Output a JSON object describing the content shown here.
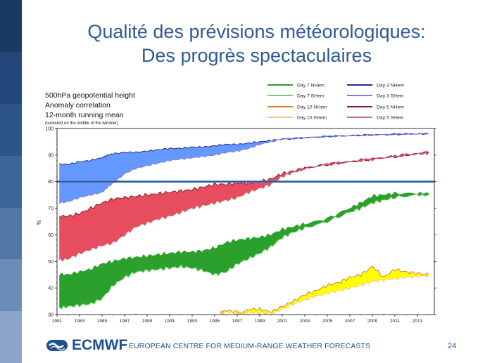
{
  "slide": {
    "title_line1": "Qualité des prévisions météorologiques:",
    "title_line2": "Des progrès spectaculaires",
    "page_number": "24",
    "logo_text": "ECMWF",
    "logo_subtitle": "EUROPEAN CENTRE FOR MEDIUM-RANGE WEATHER FORECASTS",
    "sidebar_colors": [
      "#1b3a63",
      "#23477a",
      "#2e5589",
      "#3d6598",
      "#5277a7",
      "#6b8cb7",
      "#8aa5c8"
    ]
  },
  "chart_data": {
    "type": "area",
    "annotation_lines": [
      "500hPa geopotential height",
      "Anomaly correlation",
      "12-month running mean",
      "(centered on the middle of the window)"
    ],
    "ylabel": "%",
    "xlim": [
      1981,
      2014.5
    ],
    "ylim": [
      30,
      100
    ],
    "x_ticks": [
      1981,
      1983,
      1985,
      1987,
      1989,
      1991,
      1993,
      1995,
      1997,
      1999,
      2001,
      2003,
      2005,
      2007,
      2009,
      2011,
      2013
    ],
    "y_ticks": [
      30,
      40,
      50,
      60,
      70,
      80,
      90,
      100
    ],
    "reference_line": 80,
    "grid": false,
    "legend_position": "top-right",
    "legend": [
      {
        "name": "Day 7 NHem",
        "color": "#2e9e2e"
      },
      {
        "name": "Day 3 NHem",
        "color": "#1a2e9a"
      },
      {
        "name": "Day 7 SHem",
        "color": "#6fce6f"
      },
      {
        "name": "Day 3 SHem",
        "color": "#7f7fd8"
      },
      {
        "name": "Day 10 NHem",
        "color": "#d98020"
      },
      {
        "name": "Day 5 NHem",
        "color": "#8b1a2a"
      },
      {
        "name": "Day 10 SHem",
        "color": "#f2c98a"
      },
      {
        "name": "Day 5 SHem",
        "color": "#c8707a"
      }
    ],
    "bands": [
      {
        "name": "Day 3",
        "fill": "#6699ff",
        "nh_color": "#1a2e9a",
        "sh_color": "#7f7fd8",
        "x": [
          1981.2,
          1982,
          1983,
          1984,
          1985,
          1985.5,
          1986,
          1987,
          1988,
          1989,
          1990,
          1991,
          1992,
          1993,
          1994,
          1995,
          1996,
          1997,
          1998,
          1999,
          2000,
          2001,
          2003,
          2005,
          2007,
          2009,
          2011,
          2013,
          2014
        ],
        "nh": [
          86.5,
          86.5,
          87.5,
          88,
          89,
          90,
          90.5,
          91,
          91,
          91.5,
          92,
          92.5,
          92.5,
          93,
          93,
          93.5,
          94,
          94,
          94.5,
          95,
          95.5,
          96,
          96.5,
          97,
          97.3,
          97.6,
          97.8,
          98,
          98
        ],
        "sh": [
          72,
          72.5,
          74,
          75,
          76,
          78,
          79.5,
          83,
          85,
          86,
          87,
          88,
          88.5,
          89,
          89.5,
          90,
          91,
          91.5,
          92.5,
          94,
          95,
          96,
          96.5,
          97,
          97.3,
          97.6,
          97.8,
          98,
          98
        ]
      },
      {
        "name": "Day 5",
        "fill": "#e84c5f",
        "nh_color": "#8b1a2a",
        "sh_color": "#c8707a",
        "x": [
          1981.2,
          1982,
          1983,
          1984,
          1985,
          1986,
          1987,
          1988,
          1989,
          1990,
          1991,
          1992,
          1993,
          1994,
          1995,
          1996,
          1997,
          1998,
          1999,
          2000,
          2001,
          2002,
          2003,
          2005,
          2007,
          2009,
          2011,
          2013,
          2014
        ],
        "nh": [
          67,
          67,
          68,
          70,
          72,
          73.5,
          74,
          74.5,
          75,
          75.5,
          76,
          76.5,
          77,
          78,
          79,
          79,
          79.5,
          79.5,
          80,
          81,
          83,
          84,
          85,
          86.5,
          87.5,
          88.5,
          89.5,
          90.5,
          91
        ],
        "sh": [
          50.5,
          51,
          53,
          54.5,
          56,
          57,
          60,
          63,
          64.5,
          66,
          67,
          68.5,
          70,
          71,
          72,
          73,
          74,
          76,
          77.5,
          79,
          82,
          83.5,
          85,
          86.5,
          87.5,
          88.5,
          89.5,
          90.5,
          91
        ]
      },
      {
        "name": "Day 7",
        "fill": "#2ca02c",
        "nh_color": "#2e9e2e",
        "sh_color": "#6fce6f",
        "x": [
          1981.2,
          1982,
          1983,
          1984,
          1985,
          1986,
          1987,
          1988,
          1989,
          1990,
          1991,
          1992,
          1993,
          1994,
          1995,
          1996,
          1997,
          1998,
          1999,
          2000,
          2001,
          2002,
          2003,
          2005,
          2007,
          2008,
          2009,
          2010,
          2011,
          2013,
          2014
        ],
        "nh": [
          45,
          45,
          46,
          47,
          49,
          50,
          51,
          51.5,
          52,
          52.5,
          53,
          53.5,
          53.5,
          54,
          55,
          57,
          58,
          58.5,
          59,
          60,
          62,
          63,
          64,
          66,
          70,
          72,
          74.5,
          75,
          75.5,
          75.5,
          75.5
        ],
        "sh": [
          32.5,
          33,
          33.5,
          34,
          36,
          41,
          44,
          46,
          46.5,
          47,
          47.5,
          48,
          47.5,
          46.5,
          45,
          46,
          49,
          51,
          53,
          55.5,
          59,
          61,
          62.5,
          65,
          68.5,
          70,
          72,
          73,
          74,
          75,
          75
        ]
      },
      {
        "name": "Day 10",
        "fill": "#ffff00",
        "nh_color": "#d98020",
        "sh_color": "#f2c98a",
        "x": [
          1995.5,
          1996,
          1997,
          1997.5,
          1998,
          1999,
          2000,
          2001,
          2002,
          2003,
          2004,
          2005,
          2006,
          2007,
          2008,
          2009,
          2010,
          2011,
          2012,
          2013,
          2014
        ],
        "nh": [
          30.5,
          31.5,
          31,
          30.5,
          32,
          32,
          31,
          33,
          35,
          37.5,
          39,
          41,
          42,
          44,
          45,
          48,
          44,
          47,
          46,
          45.5,
          45
        ],
        "sh": [
          30.5,
          31,
          30.5,
          30.2,
          30.8,
          30.5,
          30.5,
          32,
          34,
          35.5,
          37,
          38,
          39,
          40,
          41,
          42.5,
          43,
          43.5,
          44,
          44.5,
          44.5
        ]
      }
    ]
  }
}
